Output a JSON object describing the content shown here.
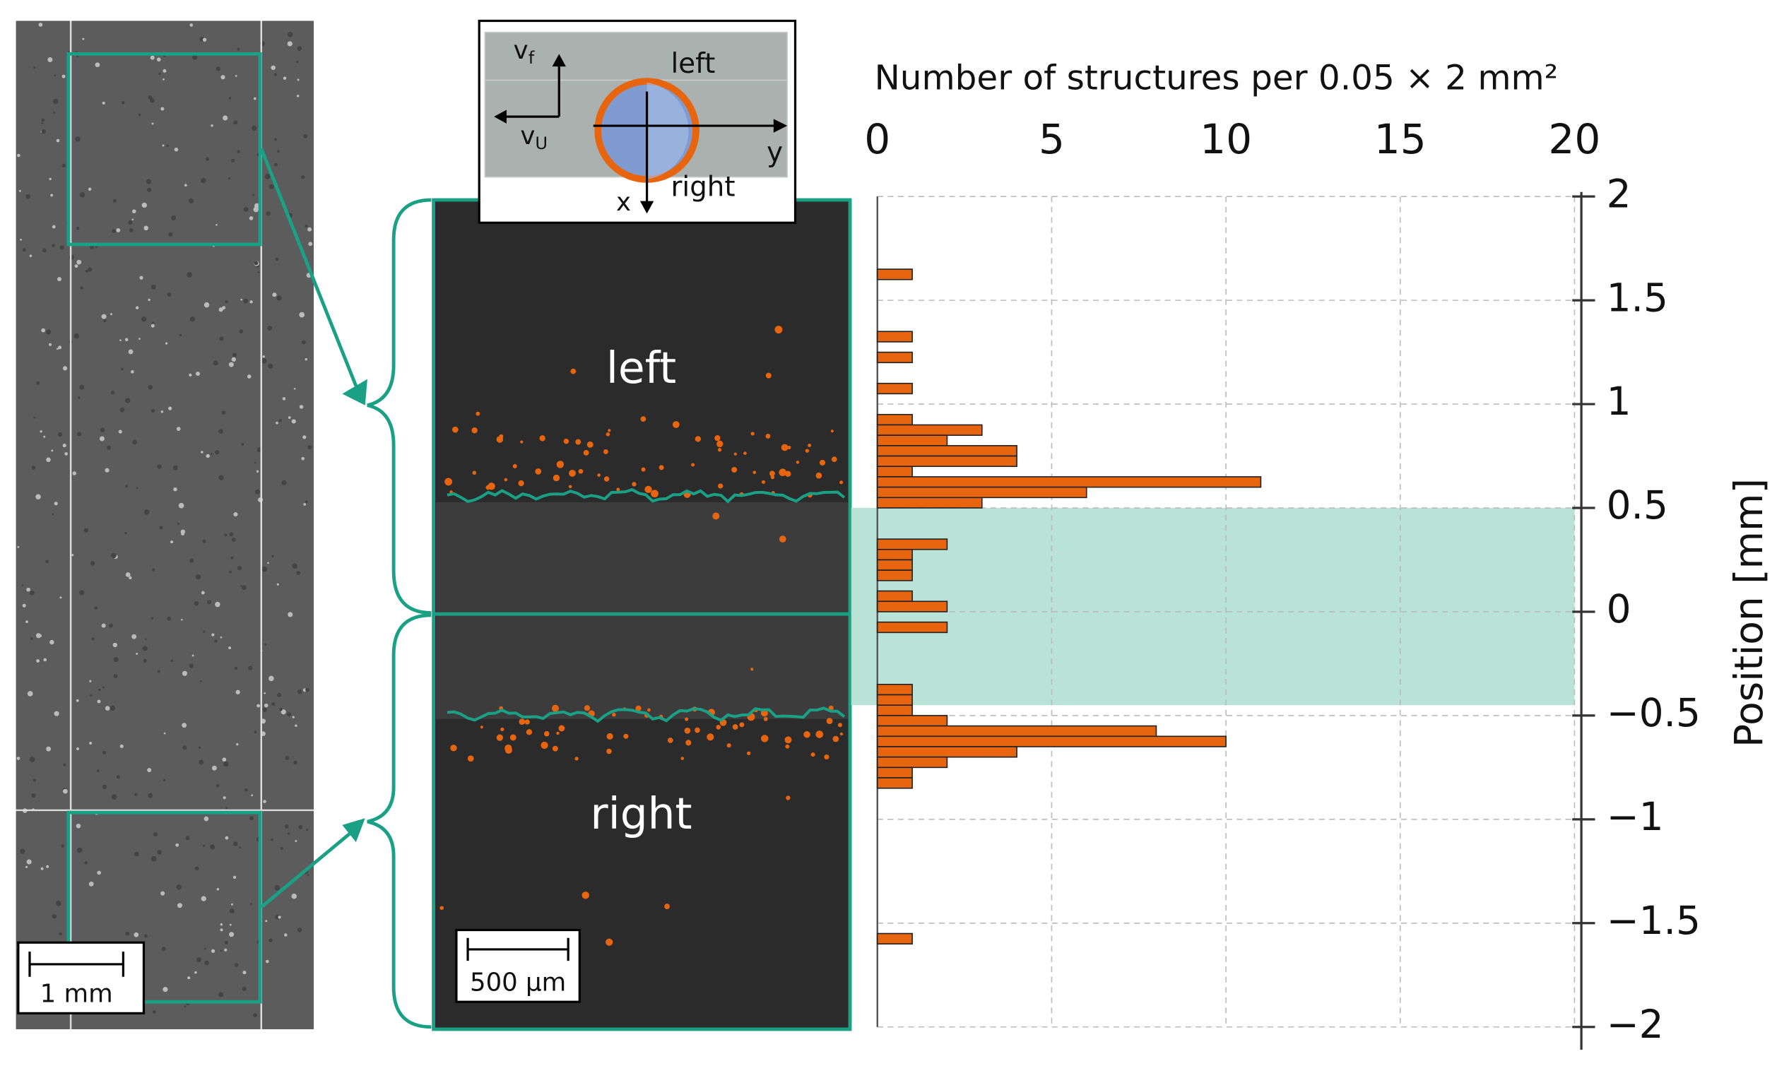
{
  "chart_data": {
    "type": "barh",
    "xlabel": "Number of structures per 0.05 × 2 mm²",
    "ylabel": "Position [mm]",
    "y": [
      1.625,
      1.325,
      1.225,
      1.075,
      0.925,
      0.875,
      0.825,
      0.775,
      0.725,
      0.675,
      0.625,
      0.575,
      0.525,
      0.325,
      0.275,
      0.225,
      0.175,
      0.075,
      0.025,
      -0.075,
      -0.375,
      -0.425,
      -0.475,
      -0.525,
      -0.575,
      -0.625,
      -0.675,
      -0.725,
      -0.775,
      -0.825,
      -1.575
    ],
    "values": [
      1,
      1,
      1,
      1,
      1,
      3,
      2,
      4,
      4,
      1,
      11,
      6,
      3,
      2,
      1,
      1,
      1,
      1,
      2,
      2,
      1,
      1,
      1,
      2,
      8,
      10,
      4,
      2,
      1,
      1,
      1
    ],
    "bin_width": 0.05,
    "color": "#e8650f",
    "shaded_range": [
      -0.45,
      0.5
    ],
    "shade_color": "#b3e0d4",
    "xlim": [
      0,
      20
    ],
    "xticks": [
      0,
      5,
      10,
      15,
      20
    ],
    "ylim": [
      -2,
      2
    ],
    "yticks": [
      2,
      1.5,
      1,
      0.5,
      0,
      {
        "value": -0.5,
        "label": "−0.5"
      },
      {
        "value": -1,
        "label": "−1"
      },
      {
        "value": -1.5,
        "label": "−1.5"
      },
      {
        "value": -2,
        "label": "−2"
      }
    ],
    "grid": true
  },
  "images": {
    "left_scale_bar": "1 mm",
    "middle_scale_bar": "500 µm",
    "middle_labels": [
      "left",
      "right"
    ]
  },
  "inset": {
    "vf": {
      "symbol": "v",
      "sub": "f"
    },
    "vu": {
      "symbol": "v",
      "sub": "U"
    },
    "left": "left",
    "right": "right",
    "y": "y",
    "x": "x"
  }
}
